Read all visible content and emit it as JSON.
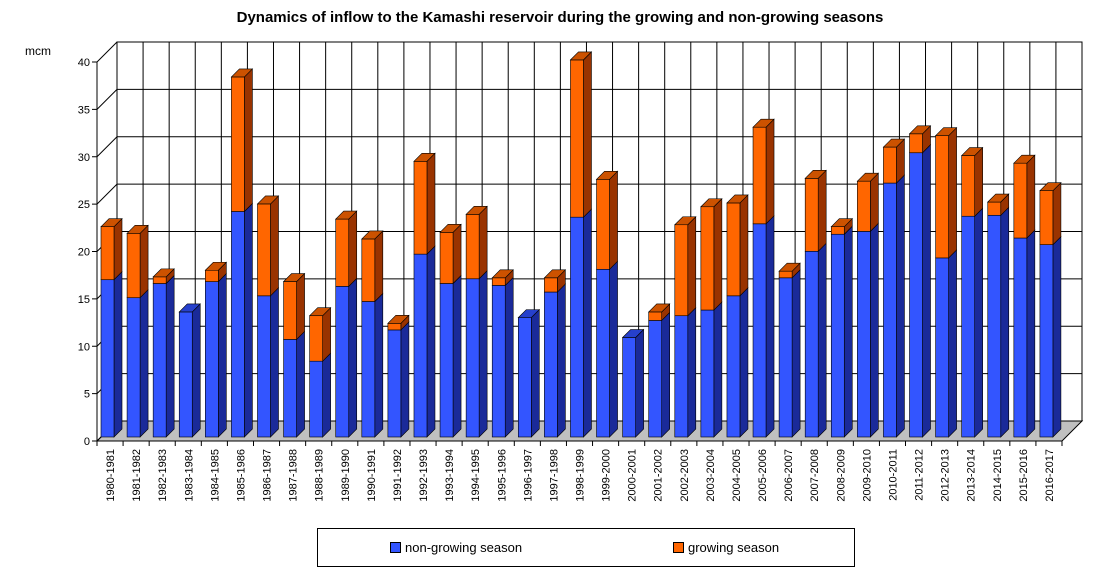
{
  "chart_data": {
    "type": "bar",
    "stacked": true,
    "title": "Dynamics of inflow to the Kamashi reservoir during the growing and non-growing seasons",
    "ylabel": "mcm",
    "xlabel": "",
    "ylim": [
      0,
      40
    ],
    "yticks": [
      0,
      5,
      10,
      15,
      20,
      25,
      30,
      35,
      40
    ],
    "grid": true,
    "legend_position": "bottom",
    "categories": [
      "1980-1981",
      "1981-1982",
      "1982-1983",
      "1983-1984",
      "1984-1985",
      "1985-1986",
      "1986-1987",
      "1987-1988",
      "1988-1989",
      "1989-1990",
      "1990-1991",
      "1991-1992",
      "1992-1993",
      "1993-1994",
      "1994-1995",
      "1995-1996",
      "1996-1997",
      "1997-1998",
      "1998-1999",
      "1999-2000",
      "2000-2001",
      "2001-2002",
      "2002-2003",
      "2003-2004",
      "2004-2005",
      "2005-2006",
      "2006-2007",
      "2007-2008",
      "2008-2009",
      "2009-2010",
      "2010-2011",
      "2011-2012",
      "2012-2013",
      "2013-2014",
      "2014-2015",
      "2015-2016",
      "2016-2017"
    ],
    "series": [
      {
        "name": "non-growing season",
        "color": "#3355ff",
        "values": [
          16.6,
          14.7,
          16.2,
          13.2,
          16.4,
          23.8,
          14.9,
          10.3,
          8.0,
          15.9,
          14.3,
          11.3,
          19.3,
          16.2,
          16.7,
          16.0,
          12.6,
          15.3,
          23.2,
          17.7,
          10.5,
          12.3,
          12.8,
          13.4,
          14.9,
          22.5,
          16.8,
          19.6,
          21.4,
          21.7,
          26.8,
          30.0,
          18.9,
          23.3,
          23.4,
          21.0,
          20.3
        ]
      },
      {
        "name": "growing season",
        "color": "#ff6600",
        "values": [
          5.6,
          6.8,
          0.7,
          0,
          1.2,
          14.2,
          9.7,
          6.1,
          4.8,
          7.1,
          6.6,
          0.7,
          9.8,
          5.4,
          6.8,
          0.8,
          0,
          1.5,
          16.6,
          9.5,
          0,
          0.9,
          9.6,
          10.9,
          9.8,
          10.2,
          0.7,
          7.7,
          0.8,
          5.3,
          3.8,
          2.0,
          12.9,
          6.4,
          1.4,
          7.9,
          5.7
        ]
      }
    ]
  }
}
